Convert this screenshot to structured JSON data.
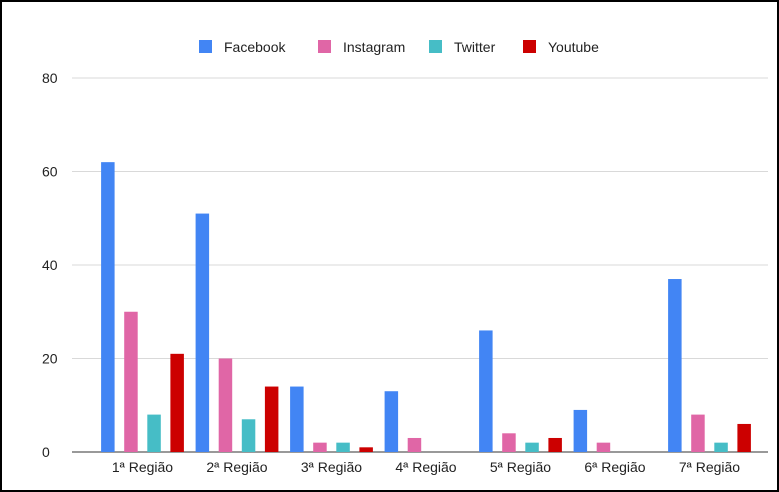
{
  "chart_data": {
    "type": "bar",
    "title": "",
    "xlabel": "",
    "ylabel": "",
    "categories": [
      "1ª Região",
      "2ª Região",
      "3ª Região",
      "4ª Região",
      "5ª Região",
      "6ª Região",
      "7ª Região"
    ],
    "series": [
      {
        "name": "Facebook",
        "color": "#4285f4",
        "values": [
          62,
          51,
          14,
          13,
          26,
          9,
          37
        ]
      },
      {
        "name": "Instagram",
        "color": "#e066a6",
        "values": [
          30,
          20,
          2,
          3,
          4,
          2,
          8
        ]
      },
      {
        "name": "Twitter",
        "color": "#46bdc6",
        "values": [
          8,
          7,
          2,
          0,
          2,
          0,
          2
        ]
      },
      {
        "name": "Youtube",
        "color": "#cc0000",
        "values": [
          21,
          14,
          1,
          0,
          3,
          0,
          6
        ]
      }
    ],
    "ylim": [
      0,
      80
    ],
    "yticks": [
      0,
      20,
      40,
      60,
      80
    ],
    "grid": true,
    "legend_position": "top"
  }
}
